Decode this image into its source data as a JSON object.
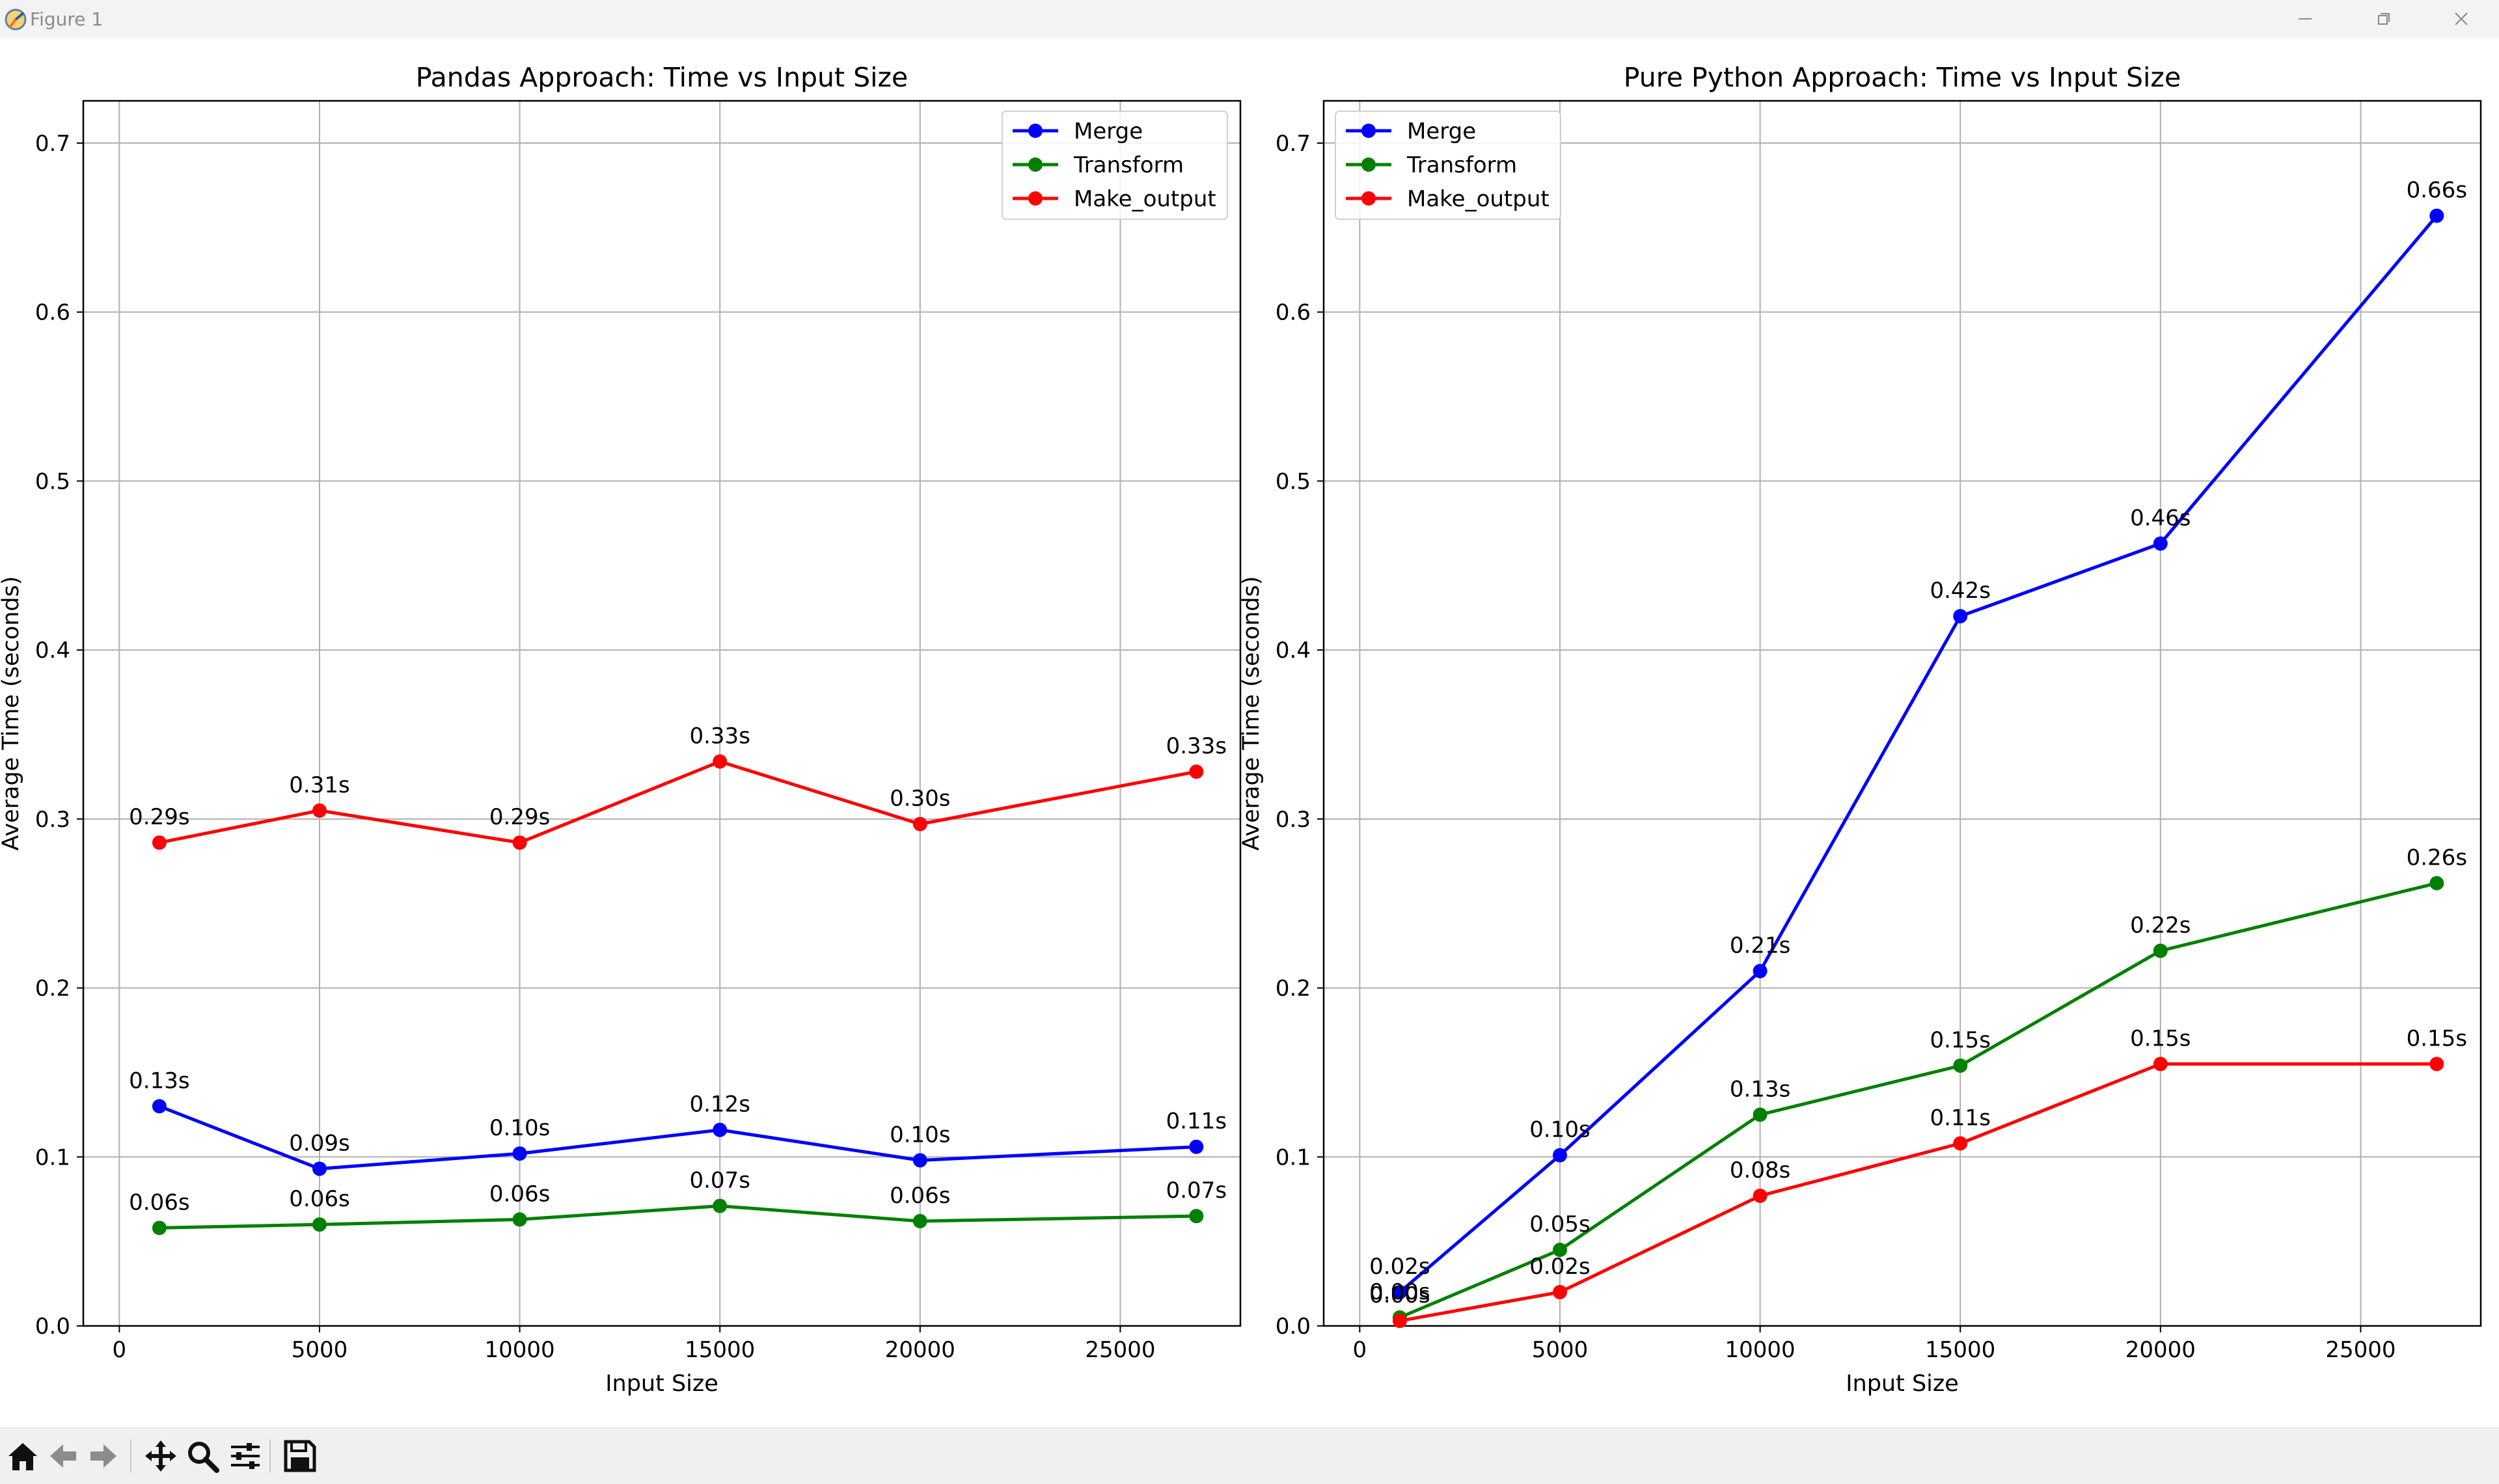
{
  "window": {
    "title": "Figure 1",
    "icons": {
      "app": "matplotlib-icon",
      "minimize": "minimize-icon",
      "maximize": "maximize-icon",
      "close": "close-icon"
    }
  },
  "toolbar": {
    "buttons": [
      {
        "name": "home-icon"
      },
      {
        "name": "back-arrow-icon"
      },
      {
        "name": "forward-arrow-icon"
      },
      {
        "name": "pan-icon"
      },
      {
        "name": "zoom-icon"
      },
      {
        "name": "configure-subplots-icon"
      },
      {
        "name": "save-icon"
      }
    ]
  },
  "chart_data": [
    {
      "type": "line",
      "title": "Pandas Approach: Time vs Input Size",
      "xlabel": "Input Size",
      "ylabel": "Average Time (seconds)",
      "xlim": [
        -900,
        28000
      ],
      "ylim": [
        0,
        0.725
      ],
      "xticks": [
        0,
        5000,
        10000,
        15000,
        20000,
        25000
      ],
      "yticks": [
        0.0,
        0.1,
        0.2,
        0.3,
        0.4,
        0.5,
        0.6,
        0.7
      ],
      "xtick_labels": [
        "0",
        "5000",
        "10000",
        "15000",
        "20000",
        "25000"
      ],
      "ytick_labels": [
        "0.0",
        "0.1",
        "0.2",
        "0.3",
        "0.4",
        "0.5",
        "0.6",
        "0.7"
      ],
      "grid": true,
      "legend_position": "top-right",
      "x": [
        1000,
        5000,
        10000,
        15000,
        20000,
        26900
      ],
      "series": [
        {
          "name": "Merge",
          "color": "#0000ff",
          "values": [
            0.13,
            0.093,
            0.102,
            0.116,
            0.098,
            0.106
          ],
          "labels": [
            "0.13s",
            "0.09s",
            "0.10s",
            "0.12s",
            "0.10s",
            "0.11s"
          ]
        },
        {
          "name": "Transform",
          "color": "#008000",
          "values": [
            0.058,
            0.06,
            0.063,
            0.071,
            0.062,
            0.065
          ],
          "labels": [
            "0.06s",
            "0.06s",
            "0.06s",
            "0.07s",
            "0.06s",
            "0.07s"
          ]
        },
        {
          "name": "Make_output",
          "color": "#ff0000",
          "values": [
            0.286,
            0.305,
            0.286,
            0.334,
            0.297,
            0.328
          ],
          "labels": [
            "0.29s",
            "0.31s",
            "0.29s",
            "0.33s",
            "0.30s",
            "0.33s"
          ]
        }
      ]
    },
    {
      "type": "line",
      "title": "Pure Python Approach: Time vs Input Size",
      "xlabel": "Input Size",
      "ylabel": "Average Time (seconds)",
      "xlim": [
        -900,
        28000
      ],
      "ylim": [
        0,
        0.725
      ],
      "xticks": [
        0,
        5000,
        10000,
        15000,
        20000,
        25000
      ],
      "yticks": [
        0.0,
        0.1,
        0.2,
        0.3,
        0.4,
        0.5,
        0.6,
        0.7
      ],
      "xtick_labels": [
        "0",
        "5000",
        "10000",
        "15000",
        "20000",
        "25000"
      ],
      "ytick_labels": [
        "0.0",
        "0.1",
        "0.2",
        "0.3",
        "0.4",
        "0.5",
        "0.6",
        "0.7"
      ],
      "grid": true,
      "legend_position": "top-left",
      "x": [
        1000,
        5000,
        10000,
        15000,
        20000,
        26900
      ],
      "series": [
        {
          "name": "Merge",
          "color": "#0000ff",
          "values": [
            0.02,
            0.101,
            0.21,
            0.42,
            0.463,
            0.657
          ],
          "labels": [
            "0.02s",
            "0.10s",
            "0.21s",
            "0.42s",
            "0.46s",
            "0.66s"
          ]
        },
        {
          "name": "Transform",
          "color": "#008000",
          "values": [
            0.005,
            0.045,
            0.125,
            0.154,
            0.222,
            0.262
          ],
          "labels": [
            "0.00s",
            "0.05s",
            "0.13s",
            "0.15s",
            "0.22s",
            "0.26s"
          ]
        },
        {
          "name": "Make_output",
          "color": "#ff0000",
          "values": [
            0.003,
            0.02,
            0.077,
            0.108,
            0.155,
            0.155
          ],
          "labels": [
            "0.00s",
            "0.02s",
            "0.08s",
            "0.11s",
            "0.15s",
            "0.15s"
          ]
        }
      ]
    }
  ]
}
